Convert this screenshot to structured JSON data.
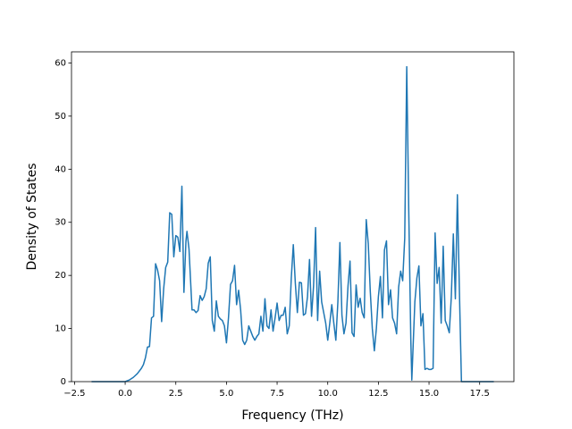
{
  "chart_data": {
    "type": "line",
    "xlabel": "Frequency (THz)",
    "ylabel": "Density of States",
    "color": "#1f77b4",
    "x": [
      -1.66,
      0,
      0.2,
      0.4,
      0.6,
      0.8,
      0.9,
      1.0,
      1.1,
      1.2,
      1.3,
      1.4,
      1.5,
      1.6,
      1.7,
      1.8,
      1.9,
      2.0,
      2.1,
      2.2,
      2.3,
      2.4,
      2.5,
      2.6,
      2.7,
      2.8,
      2.9,
      3.0,
      3.05,
      3.15,
      3.3,
      3.4,
      3.5,
      3.6,
      3.7,
      3.8,
      3.9,
      4.0,
      4.1,
      4.2,
      4.3,
      4.4,
      4.5,
      4.6,
      4.7,
      4.8,
      4.9,
      5.0,
      5.1,
      5.2,
      5.3,
      5.4,
      5.5,
      5.6,
      5.7,
      5.8,
      5.9,
      6.0,
      6.1,
      6.2,
      6.3,
      6.4,
      6.5,
      6.6,
      6.7,
      6.8,
      6.9,
      7.0,
      7.1,
      7.2,
      7.3,
      7.4,
      7.5,
      7.6,
      7.7,
      7.8,
      7.9,
      8.0,
      8.1,
      8.2,
      8.3,
      8.4,
      8.5,
      8.6,
      8.7,
      8.8,
      8.9,
      9.0,
      9.1,
      9.2,
      9.3,
      9.4,
      9.5,
      9.6,
      9.7,
      9.8,
      9.9,
      10.0,
      10.1,
      10.2,
      10.3,
      10.4,
      10.5,
      10.6,
      10.7,
      10.8,
      10.9,
      11.0,
      11.1,
      11.2,
      11.3,
      11.4,
      11.5,
      11.6,
      11.7,
      11.8,
      11.9,
      12.0,
      12.1,
      12.2,
      12.3,
      12.4,
      12.5,
      12.6,
      12.7,
      12.8,
      12.9,
      13.0,
      13.1,
      13.2,
      13.3,
      13.4,
      13.5,
      13.6,
      13.7,
      13.8,
      13.9,
      14.0,
      14.1,
      14.15,
      14.3,
      14.4,
      14.5,
      14.6,
      14.7,
      14.8,
      14.9,
      15.0,
      15.1,
      15.2,
      15.3,
      15.4,
      15.5,
      15.6,
      15.7,
      15.8,
      15.9,
      16.0,
      16.1,
      16.2,
      16.3,
      16.4,
      16.5,
      16.6,
      18.2
    ],
    "values": [
      0,
      0,
      0.3,
      0.8,
      1.5,
      2.5,
      3.2,
      4.5,
      6.5,
      6.6,
      12,
      12.3,
      22.2,
      21,
      19,
      11.3,
      17.5,
      21.5,
      22.5,
      31.8,
      31.5,
      23.5,
      27.5,
      27.2,
      24.5,
      36.8,
      16.8,
      26.5,
      28.3,
      25,
      13.5,
      13.5,
      13,
      13.4,
      16.2,
      15.3,
      16,
      17.5,
      22.3,
      23.5,
      11.5,
      9.5,
      15.2,
      12.3,
      11.8,
      11.5,
      10.5,
      7.3,
      12,
      18.3,
      19,
      21.9,
      14.5,
      17.2,
      13.5,
      7.8,
      7,
      7.8,
      10.5,
      9.5,
      8.5,
      7.8,
      8.5,
      9,
      12.3,
      9.5,
      15.6,
      10.5,
      10,
      13.5,
      9.5,
      12,
      14.8,
      11.5,
      12.5,
      12.5,
      14,
      9,
      10.5,
      19.5,
      25.8,
      18.5,
      13,
      18.7,
      18.6,
      12.5,
      12.8,
      16,
      23,
      12.3,
      18,
      29,
      11.5,
      20.8,
      15,
      13,
      11,
      7.8,
      11,
      14.5,
      11,
      7.8,
      15,
      26.2,
      12.5,
      9,
      11,
      18,
      22.7,
      9.2,
      8.5,
      18.2,
      14,
      15.7,
      13,
      12,
      30.5,
      26,
      17,
      10,
      5.8,
      10,
      16,
      19.8,
      12,
      24.8,
      26.5,
      14.5,
      17.3,
      12,
      11,
      9,
      17.8,
      20.8,
      19,
      27,
      59.3,
      32,
      8,
      0.3,
      15,
      19.5,
      21.8,
      10.5,
      12.8,
      2.3,
      2.5,
      2.3,
      2.3,
      2.5,
      28,
      18.5,
      21.5,
      11,
      25.5,
      11.5,
      10.5,
      9.2,
      16,
      27.8,
      15.6,
      35.2,
      17,
      0,
      0
    ],
    "xlim": [
      -2.65,
      19.19
    ],
    "ylim": [
      0,
      62.1
    ],
    "xticks": [
      {
        "value": -2.5,
        "label": "−2.5"
      },
      {
        "value": 0,
        "label": "0.0"
      },
      2.5,
      {
        "value": 5,
        "label": "5.0"
      },
      7.5,
      {
        "value": 10,
        "label": "10.0"
      },
      12.5,
      {
        "value": 15,
        "label": "15.0"
      },
      17.5
    ],
    "yticks": [
      0,
      10,
      20,
      30,
      40,
      50,
      60
    ]
  }
}
